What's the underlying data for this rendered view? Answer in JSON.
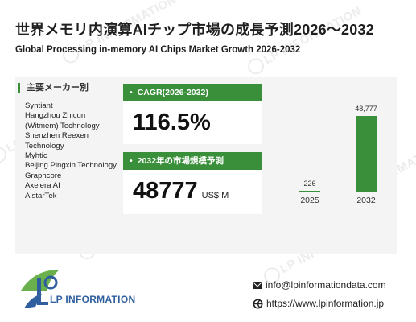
{
  "title": "世界メモリ内演算AIチップ市場の成長予測2026～2032",
  "subtitle": "Global Processing in-memory AI Chips Market Growth 2026-2032",
  "watermark": "LP INFORMATION",
  "makers": {
    "heading": "主要メーカー別",
    "items": [
      "Syntiant",
      "Hangzhou Zhicun (Witmem) Technology",
      "Shenzhen Reexen Technology",
      "Myhtic",
      "Beijing Pingxin Technology",
      "Graphcore",
      "Axelera AI",
      "AistarTek"
    ]
  },
  "cagr": {
    "label": "CAGR(2026-2032)",
    "value": "116.5%"
  },
  "market_size": {
    "label": "2032年の市場規模予測",
    "value": "48777",
    "unit": "US$ M"
  },
  "chart_data": {
    "type": "bar",
    "categories": [
      "2025",
      "2032"
    ],
    "values": [
      226,
      48777
    ],
    "value_labels": [
      "226",
      "48,777"
    ],
    "title": "",
    "xlabel": "",
    "ylabel": "",
    "bar_color": "#3a8f3a",
    "grid": false
  },
  "contact": {
    "email": "info@lpinformationdata.com",
    "website": "https://www.lpinformation.jp"
  },
  "logo": {
    "text": "LP INFORMATION"
  },
  "colors": {
    "accent": "#3a8f3a",
    "logo_blue": "#2f5f9e",
    "logo_green": "#6ab04c"
  }
}
